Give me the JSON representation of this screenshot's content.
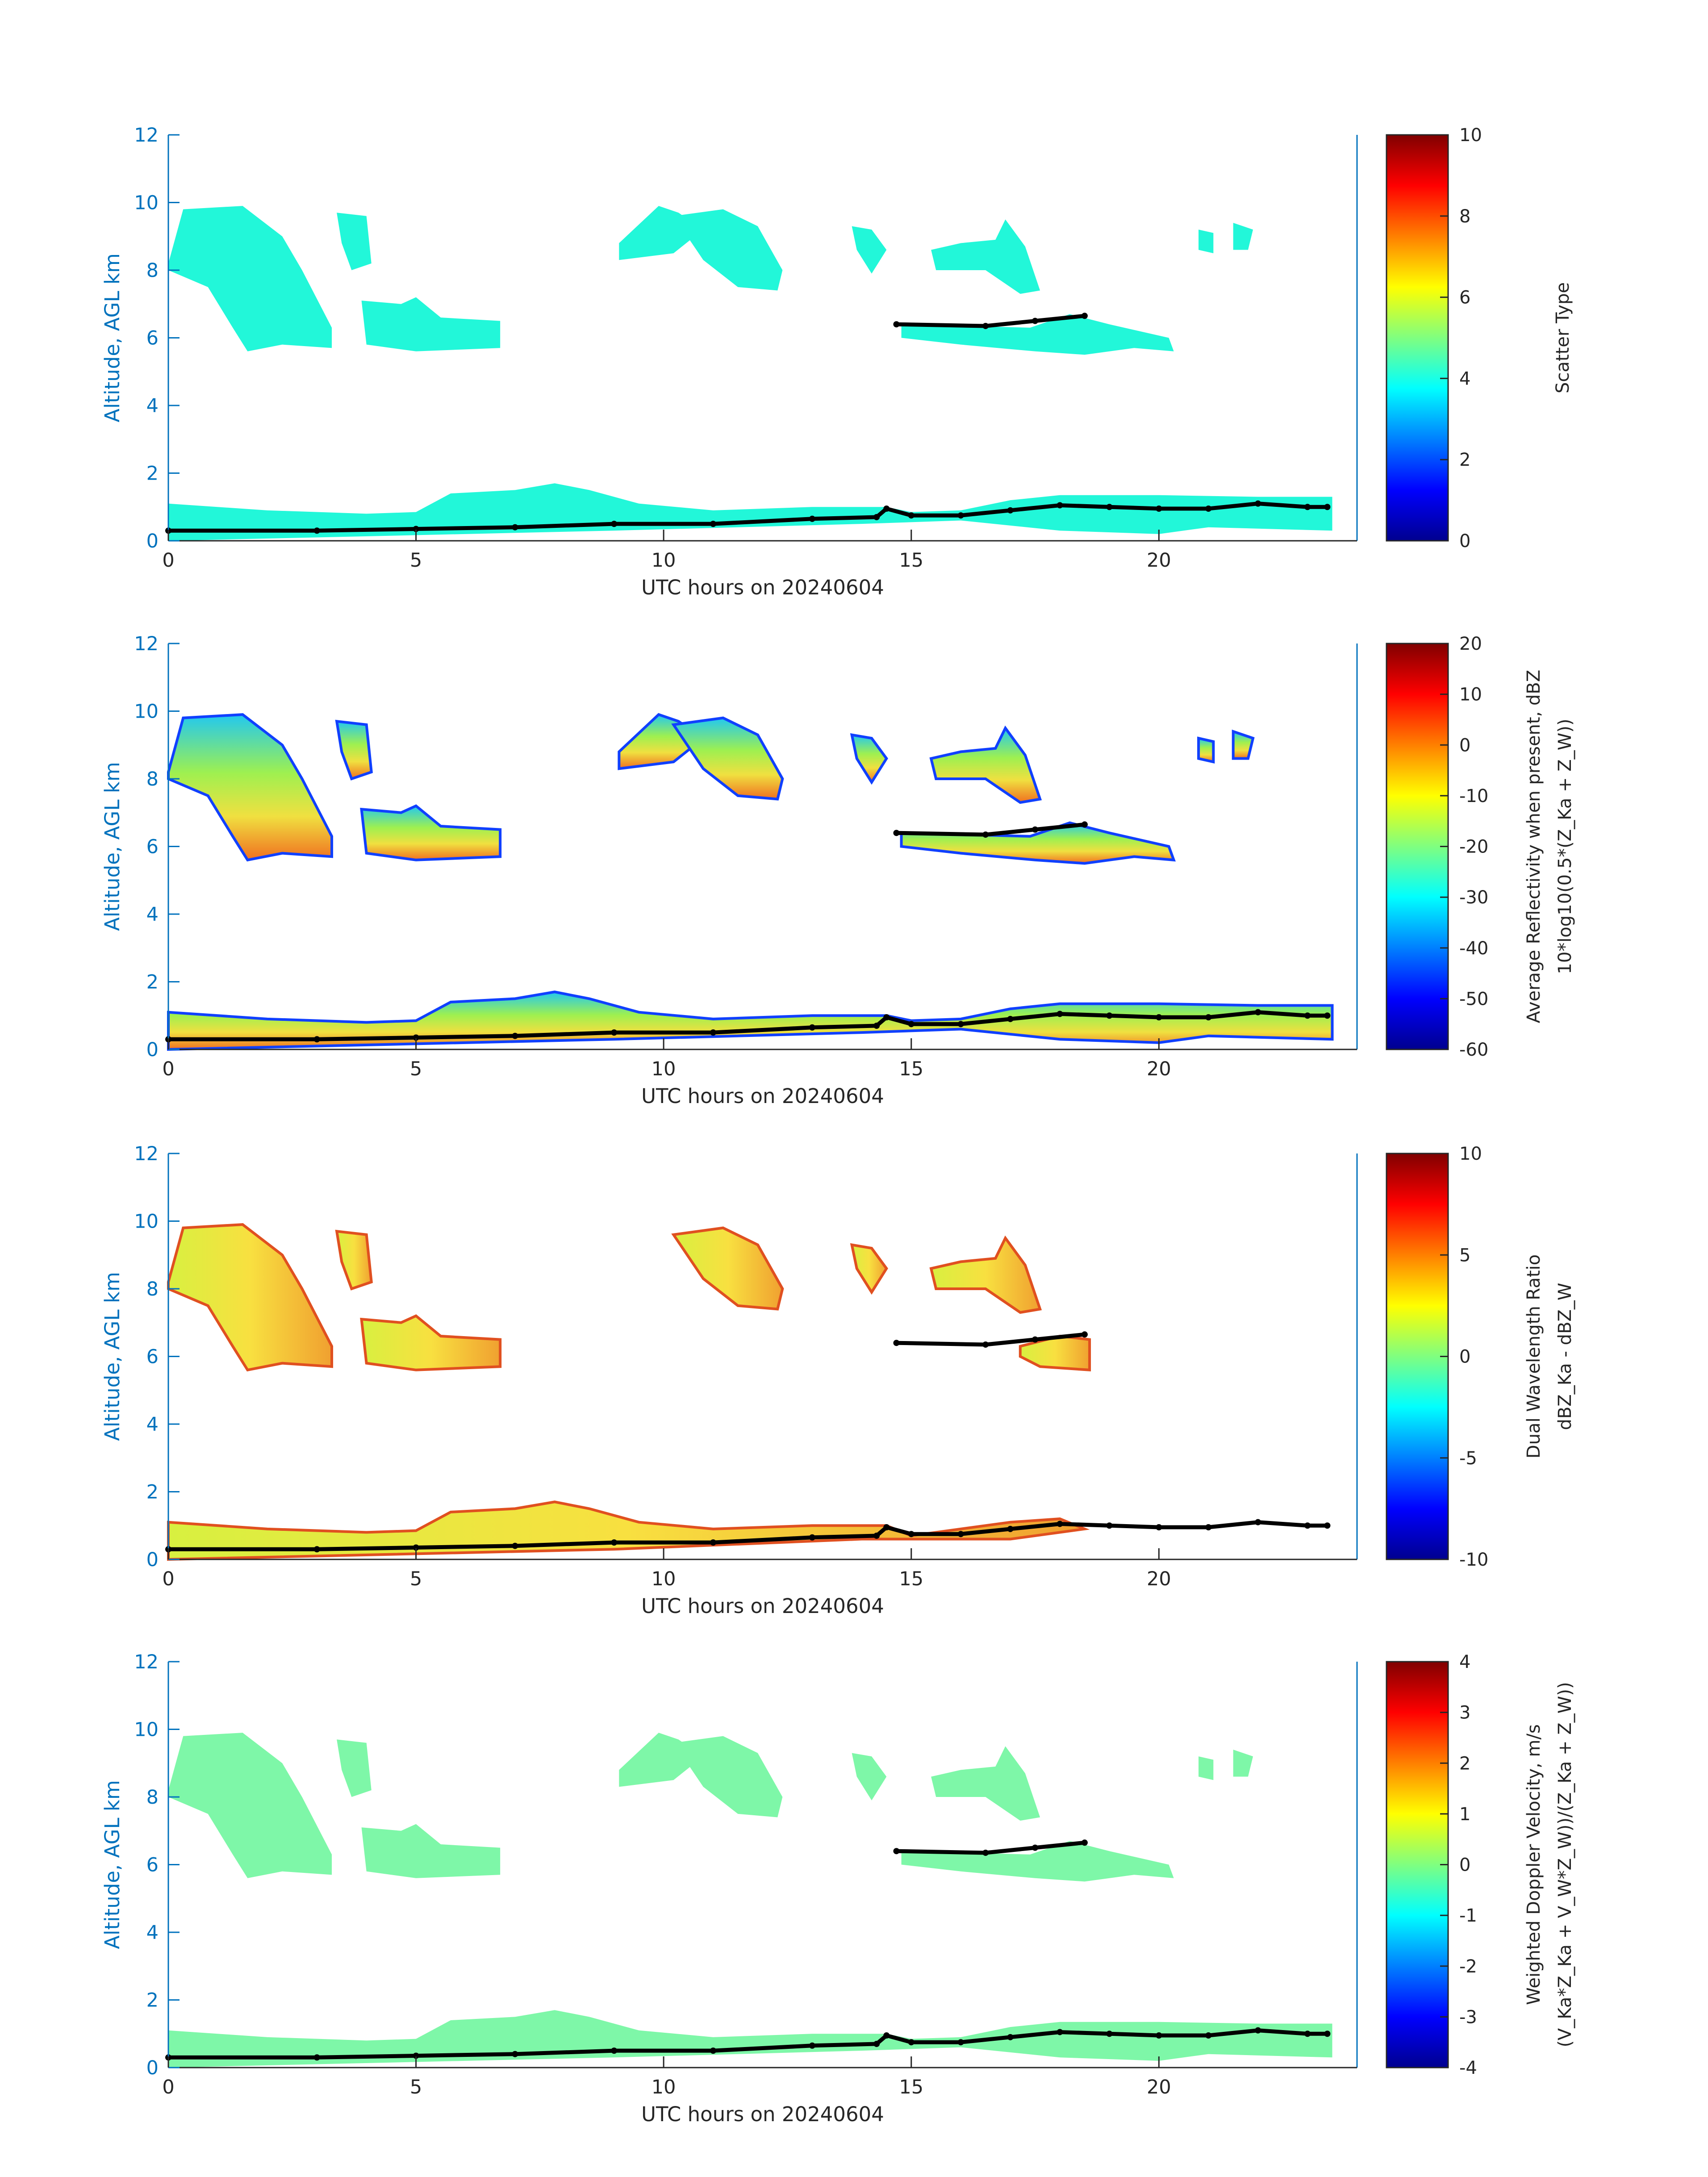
{
  "chart_data": [
    {
      "type": "heatmap",
      "xlabel": "UTC hours on 20240604",
      "ylabel": "Altitude, AGL km",
      "xlim": [
        0,
        24
      ],
      "ylim": [
        0,
        12
      ],
      "xticks": [
        "0",
        "5",
        "10",
        "15",
        "20"
      ],
      "yticks": [
        "0",
        "2",
        "4",
        "6",
        "8",
        "10",
        "12"
      ],
      "colorbar": {
        "label": [
          "Scatter Type"
        ],
        "range": [
          0,
          10
        ],
        "ticks": [
          "0",
          "2",
          "4",
          "6",
          "8",
          "10"
        ]
      },
      "regions": [
        0,
        1,
        2,
        3,
        4,
        5,
        6,
        7,
        8,
        9,
        10
      ],
      "fill": "#22f7d9"
    },
    {
      "type": "heatmap",
      "xlabel": "UTC hours on 20240604",
      "ylabel": "Altitude, AGL km",
      "xlim": [
        0,
        24
      ],
      "ylim": [
        0,
        12
      ],
      "xticks": [
        "0",
        "5",
        "10",
        "15",
        "20"
      ],
      "yticks": [
        "0",
        "2",
        "4",
        "6",
        "8",
        "10",
        "12"
      ],
      "colorbar": {
        "label": [
          "Average Reflectivity when present, dBZ",
          "10*log10(0.5*(Z_Ka + Z_W))"
        ],
        "range": [
          -60,
          20
        ],
        "ticks": [
          "-60",
          "-50",
          "-40",
          "-30",
          "-20",
          "-10",
          "0",
          "10",
          "20"
        ]
      },
      "regions": [
        0,
        1,
        2,
        3,
        4,
        5,
        6,
        7,
        8,
        9,
        10
      ],
      "fill": "refl"
    },
    {
      "type": "heatmap",
      "xlabel": "UTC hours on 20240604",
      "ylabel": "Altitude, AGL km",
      "xlim": [
        0,
        24
      ],
      "ylim": [
        0,
        12
      ],
      "xticks": [
        "0",
        "5",
        "10",
        "15",
        "20"
      ],
      "yticks": [
        "0",
        "2",
        "4",
        "6",
        "8",
        "10",
        "12"
      ],
      "colorbar": {
        "label": [
          "Dual Wavelength Ratio",
          "dBZ_Ka - dBZ_W"
        ],
        "range": [
          -10,
          10
        ],
        "ticks": [
          "-10",
          "-5",
          "0",
          "5",
          "10"
        ]
      },
      "regions": [
        0,
        1,
        2,
        4,
        5,
        6,
        11,
        12
      ],
      "fill": "dwr"
    },
    {
      "type": "heatmap",
      "xlabel": "UTC hours on 20240604",
      "ylabel": "Altitude, AGL km",
      "xlim": [
        0,
        24
      ],
      "ylim": [
        0,
        12
      ],
      "xticks": [
        "0",
        "5",
        "10",
        "15",
        "20"
      ],
      "yticks": [
        "0",
        "2",
        "4",
        "6",
        "8",
        "10",
        "12"
      ],
      "colorbar": {
        "label": [
          "Weighted Doppler Velocity, m/s",
          "(V_Ka*Z_Ka + V_W*Z_W))/(Z_Ka + Z_W))"
        ],
        "range": [
          -4,
          4
        ],
        "ticks": [
          "-4",
          "-3",
          "-2",
          "-1",
          "0",
          "1",
          "2",
          "3",
          "4"
        ]
      },
      "regions": [
        0,
        1,
        2,
        3,
        4,
        5,
        6,
        7,
        8,
        9,
        10
      ],
      "fill": "#7ef7a8"
    }
  ],
  "cloud_regions": [
    [
      [
        0,
        8.2
      ],
      [
        0.3,
        9.8
      ],
      [
        1.5,
        9.9
      ],
      [
        2.3,
        9
      ],
      [
        2.7,
        8
      ],
      [
        3.3,
        6.3
      ],
      [
        3.3,
        5.7
      ],
      [
        2.3,
        5.8
      ],
      [
        1.6,
        5.6
      ],
      [
        1.3,
        6.3
      ],
      [
        0.8,
        7.5
      ],
      [
        0,
        8.0
      ]
    ],
    [
      [
        3.4,
        9.7
      ],
      [
        4.0,
        9.6
      ],
      [
        4.1,
        8.2
      ],
      [
        3.7,
        8.0
      ],
      [
        3.5,
        8.8
      ]
    ],
    [
      [
        3.9,
        7.1
      ],
      [
        4.7,
        7.0
      ],
      [
        5.0,
        7.2
      ],
      [
        5.5,
        6.6
      ],
      [
        6.7,
        6.5
      ],
      [
        6.7,
        5.7
      ],
      [
        5,
        5.6
      ],
      [
        4,
        5.8
      ]
    ],
    [
      [
        9.1,
        8.8
      ],
      [
        9.9,
        9.9
      ],
      [
        10.3,
        9.7
      ],
      [
        10.8,
        9.2
      ],
      [
        10.2,
        8.5
      ],
      [
        9.1,
        8.3
      ]
    ],
    [
      [
        10.2,
        9.6
      ],
      [
        11.2,
        9.8
      ],
      [
        11.9,
        9.3
      ],
      [
        12.4,
        8.0
      ],
      [
        12.3,
        7.4
      ],
      [
        11.5,
        7.5
      ],
      [
        10.8,
        8.3
      ]
    ],
    [
      [
        13.8,
        9.3
      ],
      [
        14.2,
        9.2
      ],
      [
        14.5,
        8.6
      ],
      [
        14.2,
        7.9
      ],
      [
        13.9,
        8.6
      ]
    ],
    [
      [
        15.4,
        8.6
      ],
      [
        16.0,
        8.8
      ],
      [
        16.7,
        8.9
      ],
      [
        16.9,
        9.5
      ],
      [
        17.3,
        8.7
      ],
      [
        17.6,
        7.4
      ],
      [
        17.2,
        7.3
      ],
      [
        16.5,
        8.0
      ],
      [
        15.5,
        8.0
      ]
    ],
    [
      [
        14.8,
        6.4
      ],
      [
        17.4,
        6.3
      ],
      [
        18.2,
        6.7
      ],
      [
        19,
        6.4
      ],
      [
        20.2,
        6.0
      ],
      [
        20.3,
        5.6
      ],
      [
        19.5,
        5.7
      ],
      [
        18.5,
        5.5
      ],
      [
        17.5,
        5.6
      ],
      [
        16,
        5.8
      ],
      [
        14.8,
        6.0
      ]
    ],
    [
      [
        20.8,
        9.2
      ],
      [
        21.1,
        9.1
      ],
      [
        21.1,
        8.5
      ],
      [
        20.8,
        8.6
      ]
    ],
    [
      [
        21.5,
        9.4
      ],
      [
        21.9,
        9.2
      ],
      [
        21.8,
        8.6
      ],
      [
        21.5,
        8.6
      ]
    ],
    [
      [
        0,
        1.1
      ],
      [
        2,
        0.9
      ],
      [
        4,
        0.8
      ],
      [
        5,
        0.85
      ],
      [
        5.7,
        1.4
      ],
      [
        7,
        1.5
      ],
      [
        7.8,
        1.7
      ],
      [
        8.5,
        1.5
      ],
      [
        9.5,
        1.1
      ],
      [
        11,
        0.9
      ],
      [
        13,
        1.0
      ],
      [
        14.5,
        1.0
      ],
      [
        15,
        0.85
      ],
      [
        16,
        0.9
      ],
      [
        17,
        1.2
      ],
      [
        18,
        1.35
      ],
      [
        20,
        1.35
      ],
      [
        22,
        1.3
      ],
      [
        23.5,
        1.3
      ],
      [
        23.5,
        0.3
      ],
      [
        21,
        0.4
      ],
      [
        20,
        0.2
      ],
      [
        18,
        0.3
      ],
      [
        16,
        0.6
      ],
      [
        14,
        0.5
      ],
      [
        9,
        0.3
      ],
      [
        0,
        0
      ]
    ],
    [
      [
        0,
        1.1
      ],
      [
        2,
        0.9
      ],
      [
        4,
        0.8
      ],
      [
        5,
        0.85
      ],
      [
        5.7,
        1.4
      ],
      [
        7,
        1.5
      ],
      [
        7.8,
        1.7
      ],
      [
        8.5,
        1.5
      ],
      [
        9.5,
        1.1
      ],
      [
        11,
        0.9
      ],
      [
        13,
        1.0
      ],
      [
        14.5,
        1.0
      ],
      [
        15,
        0.7
      ],
      [
        17,
        1.1
      ],
      [
        18,
        1.2
      ],
      [
        18.5,
        0.9
      ],
      [
        17,
        0.6
      ],
      [
        14,
        0.6
      ],
      [
        9,
        0.3
      ],
      [
        0,
        0
      ]
    ],
    [
      [
        17.2,
        6.3
      ],
      [
        18,
        6.6
      ],
      [
        18.6,
        6.5
      ],
      [
        18.6,
        5.6
      ],
      [
        17.6,
        5.7
      ],
      [
        17.2,
        6.0
      ]
    ]
  ],
  "boundary_line": [
    [
      0,
      0.3
    ],
    [
      3,
      0.3
    ],
    [
      5,
      0.35
    ],
    [
      7,
      0.4
    ],
    [
      9,
      0.5
    ],
    [
      11,
      0.5
    ],
    [
      13,
      0.65
    ],
    [
      14.3,
      0.7
    ],
    [
      14.5,
      0.95
    ],
    [
      15,
      0.75
    ],
    [
      16,
      0.75
    ],
    [
      17,
      0.9
    ],
    [
      18,
      1.05
    ],
    [
      19,
      1.0
    ],
    [
      20,
      0.95
    ],
    [
      21,
      0.95
    ],
    [
      22,
      1.1
    ],
    [
      23,
      1.0
    ],
    [
      23.4,
      1.0
    ]
  ],
  "upper_line": [
    [
      14.7,
      6.4
    ],
    [
      16.5,
      6.35
    ],
    [
      17.5,
      6.5
    ],
    [
      18.5,
      6.65
    ]
  ]
}
